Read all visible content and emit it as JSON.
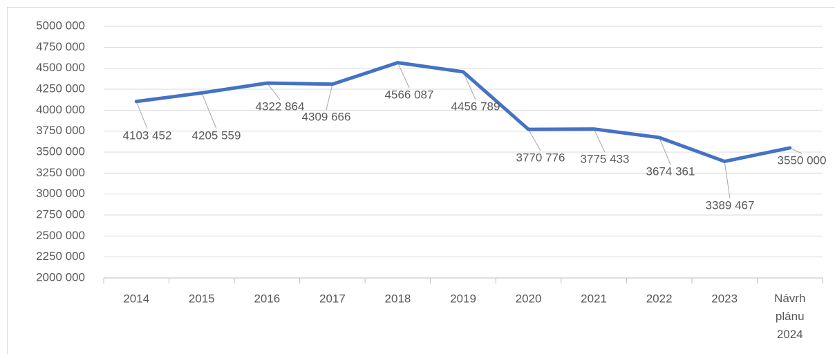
{
  "chart_data": {
    "type": "line",
    "categories": [
      "2014",
      "2015",
      "2016",
      "2017",
      "2018",
      "2019",
      "2020",
      "2021",
      "2022",
      "2023",
      "Návrh plánu 2024"
    ],
    "series": [
      {
        "color": "#4472c4",
        "values": [
          4103452,
          4205559,
          4322864,
          4309666,
          4566087,
          4456789,
          3770776,
          3775433,
          3674361,
          3389467,
          3550000
        ],
        "value_labels": [
          "4103 452",
          "4205 559",
          "4322 864",
          "4309 666",
          "4566 087",
          "4456 789",
          "3770 776",
          "3775 433",
          "3674 361",
          "3389 467",
          "3550 000"
        ]
      }
    ],
    "ylim": [
      2000000,
      5000000
    ],
    "yticks": [
      {
        "value": 2000000,
        "label": "2000 000"
      },
      {
        "value": 2250000,
        "label": "2250 000"
      },
      {
        "value": 2500000,
        "label": "2500 000"
      },
      {
        "value": 2750000,
        "label": "2750 000"
      },
      {
        "value": 3000000,
        "label": "3000 000"
      },
      {
        "value": 3250000,
        "label": "3250 000"
      },
      {
        "value": 3500000,
        "label": "3500 000"
      },
      {
        "value": 3750000,
        "label": "3750 000"
      },
      {
        "value": 4000000,
        "label": "4000 000"
      },
      {
        "value": 4250000,
        "label": "4250 000"
      },
      {
        "value": 4500000,
        "label": "4500 000"
      },
      {
        "value": 4750000,
        "label": "4750 000"
      },
      {
        "value": 5000000,
        "label": "5000 000"
      }
    ],
    "grid": true
  }
}
